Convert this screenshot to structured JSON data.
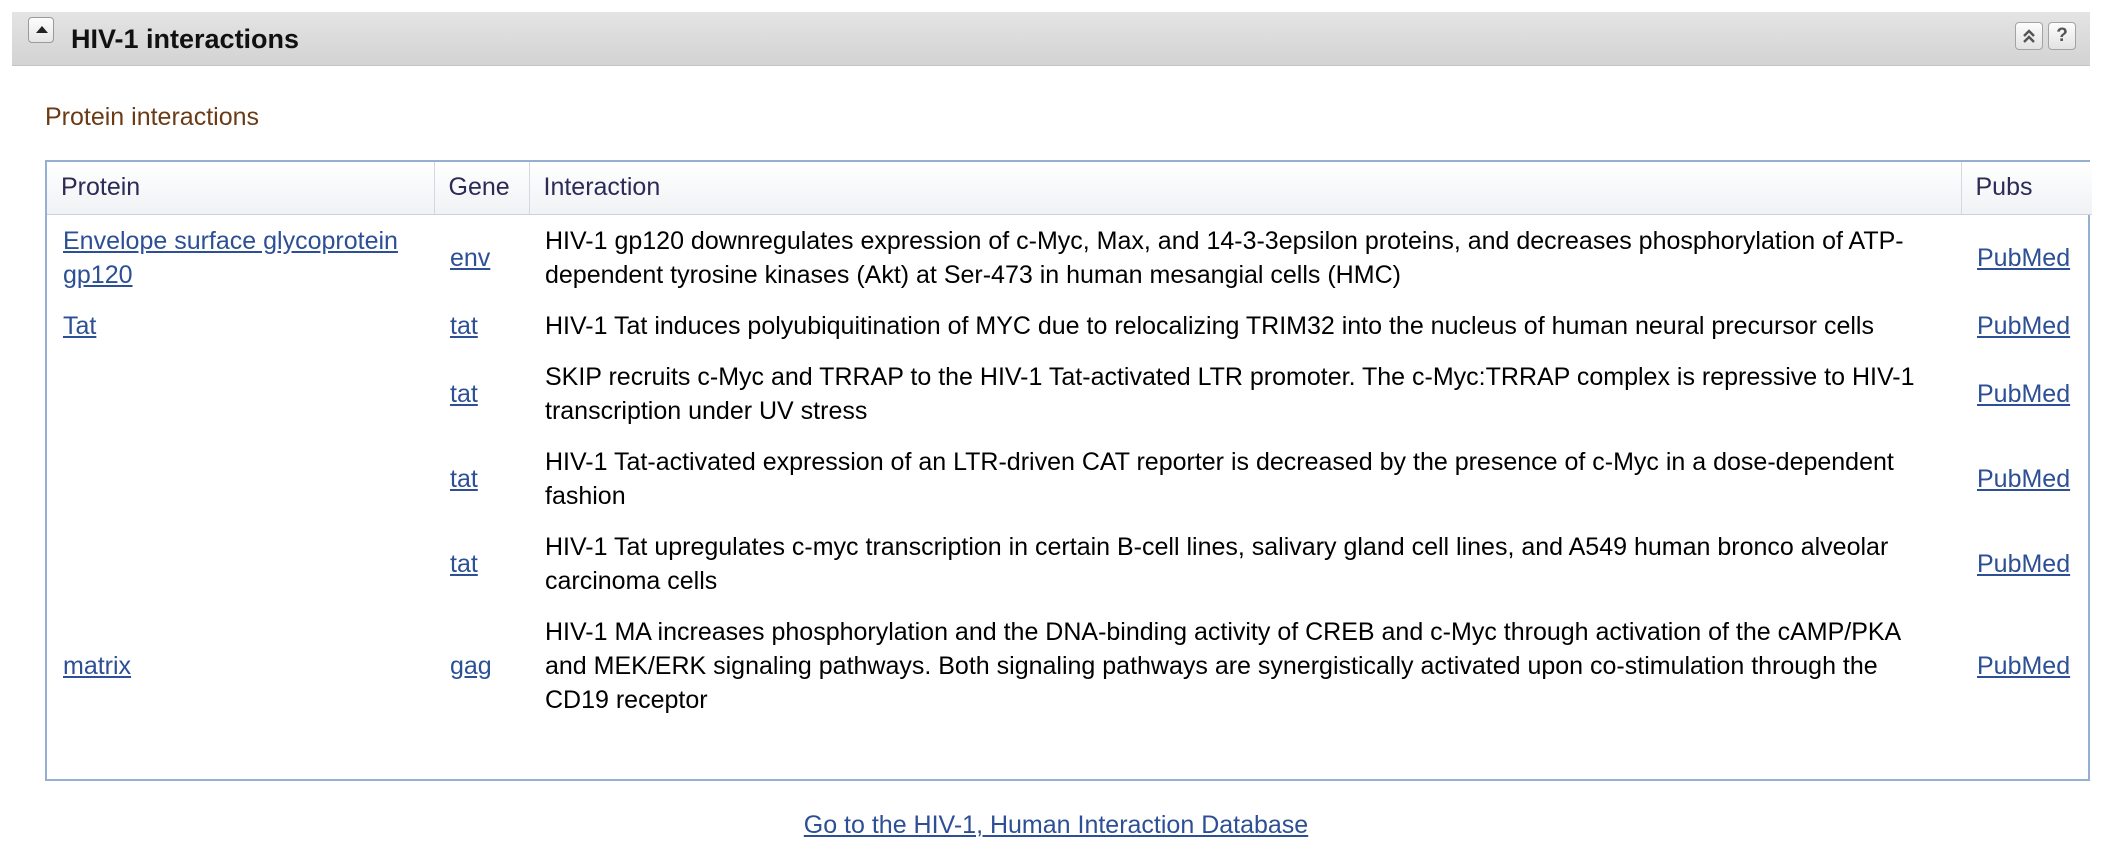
{
  "panel": {
    "title": "HIV-1 interactions",
    "help_label": "?"
  },
  "section": {
    "label": "Protein interactions"
  },
  "table": {
    "columns": [
      "Protein",
      "Gene",
      "Interaction",
      "Pubs"
    ],
    "rows": [
      {
        "protein": "Envelope surface glycoprotein gp120",
        "gene": "env",
        "interaction": "HIV-1 gp120 downregulates expression of c-Myc, Max, and 14-3-3epsilon proteins, and decreases phosphorylation of ATP-dependent tyrosine kinases (Akt) at Ser-473 in human mesangial cells (HMC)",
        "pubs": "PubMed"
      },
      {
        "protein": "Tat",
        "gene": "tat",
        "interaction": "HIV-1 Tat induces polyubiquitination of MYC due to relocalizing TRIM32 into the nucleus of human neural precursor cells",
        "pubs": "PubMed"
      },
      {
        "protein": "",
        "gene": "tat",
        "interaction": "SKIP recruits c-Myc and TRRAP to the HIV-1 Tat-activated LTR promoter. The c-Myc:TRRAP complex is repressive to HIV-1 transcription under UV stress",
        "pubs": "PubMed"
      },
      {
        "protein": "",
        "gene": "tat",
        "interaction": "HIV-1 Tat-activated expression of an LTR-driven CAT reporter is decreased by the presence of c-Myc in a dose-dependent fashion",
        "pubs": "PubMed"
      },
      {
        "protein": "",
        "gene": "tat",
        "interaction": "HIV-1 Tat upregulates c-myc transcription in certain B-cell lines, salivary gland cell lines, and A549 human bronco alveolar carcinoma cells",
        "pubs": "PubMed"
      },
      {
        "protein": "matrix",
        "gene": "gag",
        "interaction": "HIV-1 MA increases phosphorylation and the DNA-binding activity of CREB and c-Myc through activation of the cAMP/PKA and MEK/ERK signaling pathways. Both signaling pathways are synergistically activated upon co-stimulation through the CD19 receptor",
        "pubs": "PubMed"
      }
    ]
  },
  "footer": {
    "db_link": "Go to the HIV-1, Human Interaction Database"
  },
  "colors": {
    "header_bg": "#d8d8d8",
    "link": "#2c4f95",
    "section_label": "#6b3b16",
    "table_border": "#95afd0"
  }
}
